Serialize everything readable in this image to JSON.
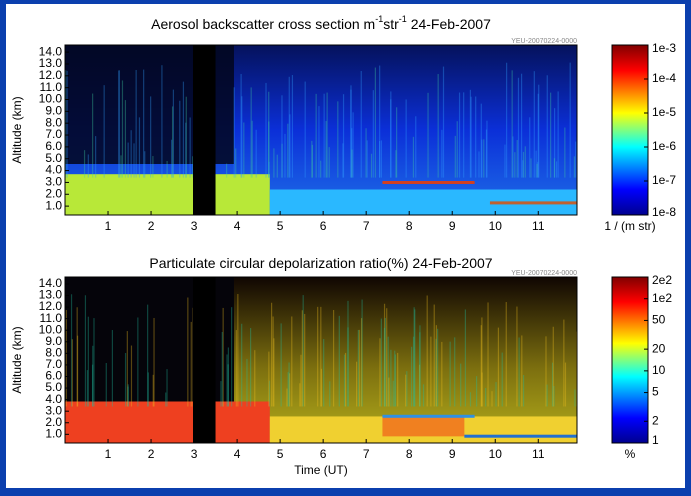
{
  "chart_data": [
    {
      "type": "heatmap",
      "title_parts": [
        {
          "text": "Aerosol backscatter cross section m"
        },
        {
          "text": "-1",
          "sup": true
        },
        {
          "text": "str"
        },
        {
          "text": "-1",
          "sup": true
        },
        {
          "text": "  24-Feb-2007"
        }
      ],
      "watermark": "YEU-20070224-0000",
      "ylabel": "Altitude (km)",
      "xlim": [
        0,
        11.9
      ],
      "xticks": [
        1,
        2,
        3,
        4,
        5,
        6,
        7,
        8,
        9,
        10,
        11
      ],
      "ylim": [
        0.25,
        14.6
      ],
      "yticks": [
        {
          "value": 1,
          "label": "1.0"
        },
        {
          "value": 2,
          "label": "2.0"
        },
        {
          "value": 3,
          "label": "3.0"
        },
        {
          "value": 4,
          "label": "4.0"
        },
        {
          "value": 5,
          "label": "5.0"
        },
        {
          "value": 6,
          "label": "6.0"
        },
        {
          "value": 7,
          "label": "7.0"
        },
        {
          "value": 8,
          "label": "8.0"
        },
        {
          "value": 9,
          "label": "9.0"
        },
        {
          "value": 10,
          "label": "10.0"
        },
        {
          "value": 11,
          "label": "11.0"
        },
        {
          "value": 12,
          "label": "12.0"
        },
        {
          "value": 13,
          "label": "13.0"
        },
        {
          "value": 14,
          "label": "14.0"
        }
      ],
      "colorbar": {
        "label": "1 / (m str)",
        "log": true,
        "lim": [
          1e-08,
          0.001
        ],
        "ticks": [
          {
            "value": 0.001,
            "label": "1e-3"
          },
          {
            "value": 0.0001,
            "label": "1e-4"
          },
          {
            "value": 1e-05,
            "label": "1e-5"
          },
          {
            "value": 1e-06,
            "label": "1e-6"
          },
          {
            "value": 1e-07,
            "label": "1e-7"
          },
          {
            "value": 1e-08,
            "label": "1e-8"
          }
        ]
      }
    },
    {
      "type": "heatmap",
      "title_parts": [
        {
          "text": "Particulate circular depolarization ratio(%)  24-Feb-2007"
        }
      ],
      "watermark": "YEU-20070224-0000",
      "ylabel": "Altitude (km)",
      "xlabel": "Time (UT)",
      "xlim": [
        0,
        11.9
      ],
      "xticks": [
        1,
        2,
        3,
        4,
        5,
        6,
        7,
        8,
        9,
        10,
        11
      ],
      "ylim": [
        0.25,
        14.6
      ],
      "yticks": [
        {
          "value": 1,
          "label": "1.0"
        },
        {
          "value": 2,
          "label": "2.0"
        },
        {
          "value": 3,
          "label": "3.0"
        },
        {
          "value": 4,
          "label": "4.0"
        },
        {
          "value": 5,
          "label": "5.0"
        },
        {
          "value": 6,
          "label": "6.0"
        },
        {
          "value": 7,
          "label": "7.0"
        },
        {
          "value": 8,
          "label": "8.0"
        },
        {
          "value": 9,
          "label": "9.0"
        },
        {
          "value": 10,
          "label": "10.0"
        },
        {
          "value": 11,
          "label": "11.0"
        },
        {
          "value": 12,
          "label": "12.0"
        },
        {
          "value": 13,
          "label": "13.0"
        },
        {
          "value": 14,
          "label": "14.0"
        }
      ],
      "colorbar": {
        "label": "%",
        "log": true,
        "lim": [
          1,
          200
        ],
        "ticks": [
          {
            "value": 200,
            "label": "2e2"
          },
          {
            "value": 100,
            "label": "1e2"
          },
          50,
          20,
          10,
          5,
          2,
          1
        ]
      }
    }
  ]
}
